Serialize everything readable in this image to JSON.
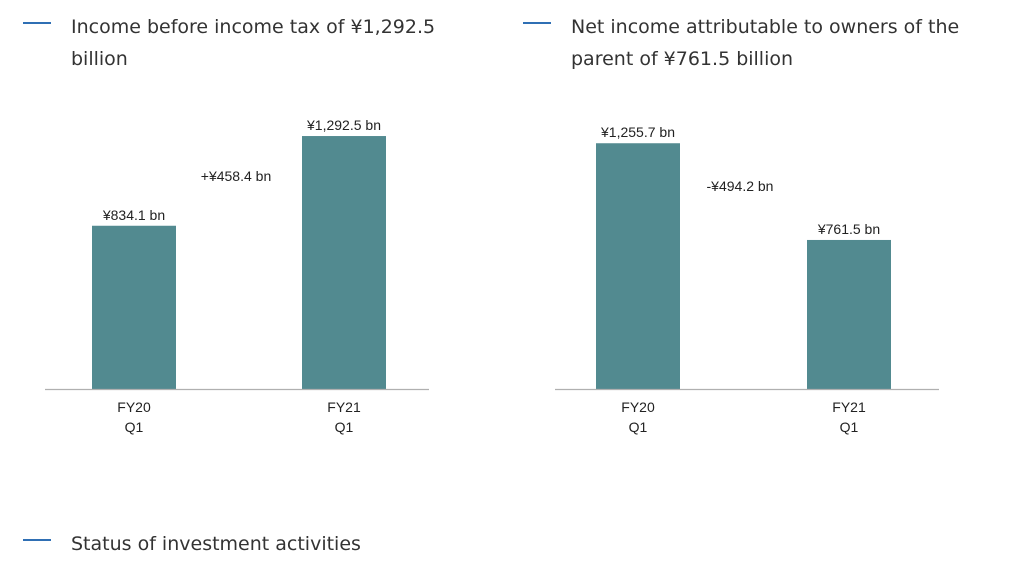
{
  "headings": {
    "income_before_tax": "Income before income tax of ¥1,292.5 billion",
    "net_income": "Net income attributable to owners of the parent of ¥761.5 billion",
    "investment": "Status of investment activities"
  },
  "colors": {
    "bar": "#528a90",
    "axis": "#b0b0b0",
    "heading_dash": "#2f6fb4",
    "text": "#333333"
  },
  "chart_data": [
    {
      "type": "bar",
      "title": "Income before income tax of ¥1,292.5 billion",
      "categories": [
        [
          "FY20",
          "Q1"
        ],
        [
          "FY21",
          "Q1"
        ]
      ],
      "values": [
        834.1,
        1292.5
      ],
      "data_labels": [
        "¥834.1 bn",
        "¥1,292.5 bn"
      ],
      "change_label": "+¥458.4 bn",
      "unit": "¥ bn",
      "ylim": [
        0,
        1400
      ],
      "grid": false,
      "xlabel": "",
      "ylabel": ""
    },
    {
      "type": "bar",
      "title": "Net income attributable to owners of the parent of ¥761.5 billion",
      "categories": [
        [
          "FY20",
          "Q1"
        ],
        [
          "FY21",
          "Q1"
        ]
      ],
      "values": [
        1255.7,
        761.5
      ],
      "data_labels": [
        "¥1,255.7 bn",
        "¥761.5 bn"
      ],
      "change_label": "-¥494.2 bn",
      "unit": "¥ bn",
      "ylim": [
        0,
        1400
      ],
      "grid": false,
      "xlabel": "",
      "ylabel": ""
    }
  ]
}
